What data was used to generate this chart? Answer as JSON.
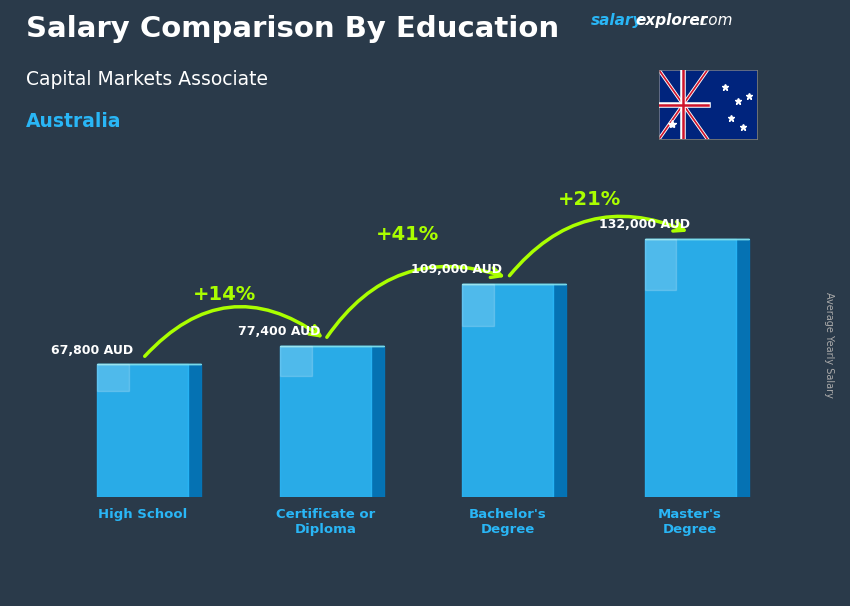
{
  "title_main": "Salary Comparison By Education",
  "title_sub": "Capital Markets Associate",
  "title_country": "Australia",
  "ylabel": "Average Yearly Salary",
  "categories": [
    "High School",
    "Certificate or\nDiploma",
    "Bachelor's\nDegree",
    "Master's\nDegree"
  ],
  "values": [
    67800,
    77400,
    109000,
    132000
  ],
  "value_labels": [
    "67,800 AUD",
    "77,400 AUD",
    "109,000 AUD",
    "132,000 AUD"
  ],
  "pct_labels": [
    "+14%",
    "+41%",
    "+21%"
  ],
  "bar_face_color": "#29b6f6",
  "bar_side_color": "#0277bd",
  "bar_top_color": "#80deea",
  "bg_color": "#2a3a4a",
  "title_color": "#ffffff",
  "subtitle_color": "#ffffff",
  "country_color": "#29b6f6",
  "salary_label_color": "#ffffff",
  "pct_color": "#aaff00",
  "arrow_color": "#aaff00",
  "xlabel_color": "#29b6f6",
  "watermark_salary_color": "#29b6f6",
  "watermark_rest_color": "#ffffff",
  "ylabel_color": "#aaaaaa"
}
